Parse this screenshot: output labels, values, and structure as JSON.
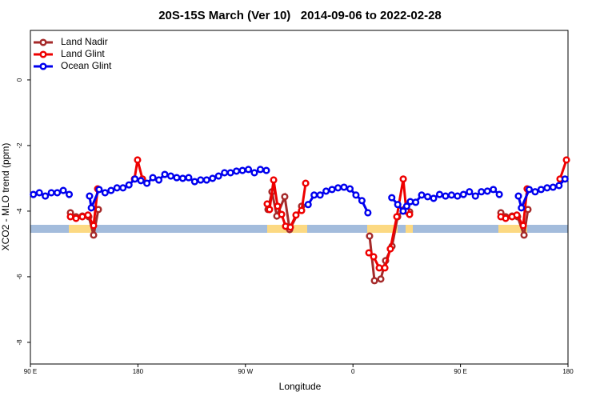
{
  "chart_data": {
    "type": "line",
    "title": "20S-15S March (Ver 10)   2014-09-06 to 2022-02-28",
    "xlabel": "Longitude",
    "ylabel": "XCO2 - MLO trend (ppm)",
    "xlim": [
      90,
      540
    ],
    "ylim": [
      -8.66,
      1.51
    ],
    "xticks": [
      {
        "value": 90,
        "label": "90 E"
      },
      180,
      {
        "value": 270,
        "label": "90 W"
      },
      {
        "value": 360,
        "label": "0"
      },
      {
        "value": 450,
        "label": "90 E"
      },
      {
        "value": 540,
        "label": "180"
      }
    ],
    "yticks": [
      0,
      -2,
      -4,
      -6,
      -8
    ],
    "legend": "top-left",
    "series": [
      {
        "name": "Land Nadir",
        "color": "#a52a2a",
        "x": [
          123.5,
          128.2,
          133.5,
          138.9,
          142.9,
          146.9,
          200,
          288.9,
          292.2,
          296.3,
          302.9,
          307.0,
          317.0,
          350,
          373.9,
          378.0,
          383.3,
          387.3,
          392.7,
          397.4,
          402.7,
          407.4,
          450,
          483.8,
          487.8,
          493.2,
          497.8,
          503.2,
          506.5
        ],
        "values": [
          -4.05,
          -4.17,
          -4.15,
          -4.17,
          -4.73,
          -3.95,
          null,
          -3.95,
          -3.41,
          -4.15,
          -3.56,
          -4.56,
          -3.85,
          null,
          -4.76,
          -6.12,
          -6.07,
          -5.51,
          -5.07,
          -4.17,
          -3.95,
          -4.02,
          null,
          -4.05,
          -4.17,
          -4.15,
          -4.17,
          -4.73,
          -3.95
        ]
      },
      {
        "name": "Land Glint",
        "color": "#ee0000",
        "x": [
          123.5,
          128.2,
          133.5,
          138.2,
          142.9,
          146.3,
          160,
          177.1,
          179.7,
          183.8,
          250,
          288.2,
          290.2,
          293.6,
          296.9,
          300.3,
          303.6,
          307.6,
          312.3,
          317.0,
          320.4,
          350,
          373.3,
          377.3,
          382.0,
          386.7,
          391.3,
          396.7,
          402.1,
          404.7,
          407.4,
          450,
          483.8,
          487.8,
          493.2,
          497.2,
          502.5,
          505.8,
          520,
          533.3,
          538.7
        ],
        "values": [
          -4.17,
          -4.22,
          -4.17,
          -4.12,
          -4.44,
          -3.32,
          null,
          -3.02,
          -2.44,
          -3.02,
          null,
          -3.78,
          -3.95,
          -3.05,
          -3.85,
          -4.1,
          -4.46,
          -4.49,
          -4.12,
          -3.98,
          -3.15,
          null,
          -5.27,
          -5.39,
          -5.73,
          -5.73,
          -5.15,
          -4.17,
          -3.02,
          -4.0,
          -4.1,
          null,
          -4.17,
          -4.22,
          -4.17,
          -4.12,
          -4.44,
          -3.32,
          null,
          -3.02,
          -2.44
        ]
      },
      {
        "name": "Ocean Glint",
        "color": "#0000ee",
        "x": [
          92.5,
          97.5,
          102.5,
          107.5,
          112.5,
          117.5,
          122.5,
          127.5,
          139.5,
          141,
          147.5,
          152.5,
          157.5,
          162.5,
          167.5,
          172.5,
          177.5,
          182.5,
          187.5,
          192.5,
          197.5,
          202.5,
          207.5,
          212.5,
          217.5,
          222.5,
          227.5,
          232.5,
          237.5,
          242.5,
          247.5,
          252.5,
          257.5,
          262.5,
          267.5,
          272.5,
          277.5,
          282.5,
          287.5,
          292.5,
          322.5,
          327.5,
          332.5,
          337.5,
          342.5,
          347.5,
          352.5,
          357.5,
          362.5,
          367.5,
          372.5,
          377.5,
          392.5,
          397.5,
          402,
          405,
          408,
          412.5,
          417.5,
          422.5,
          427.5,
          432.5,
          437.5,
          442.5,
          447.5,
          452.5,
          457.5,
          462.5,
          467.5,
          472.5,
          477.5,
          482.5,
          487.5,
          498.5,
          501,
          507.5,
          512.5,
          517.5,
          522.5,
          527.5,
          532.5,
          537.5
        ],
        "values": [
          -3.49,
          -3.44,
          -3.54,
          -3.44,
          -3.44,
          -3.37,
          -3.49,
          null,
          -3.54,
          -3.9,
          -3.34,
          -3.44,
          -3.37,
          -3.29,
          -3.29,
          -3.2,
          -3.02,
          -3.07,
          -3.15,
          -2.98,
          -3.05,
          -2.88,
          -2.93,
          -2.98,
          -3.0,
          -2.98,
          -3.1,
          -3.05,
          -3.05,
          -3.0,
          -2.93,
          -2.83,
          -2.83,
          -2.78,
          -2.76,
          -2.73,
          -2.83,
          -2.73,
          -2.76,
          null,
          -3.8,
          -3.51,
          -3.51,
          -3.39,
          -3.34,
          -3.29,
          -3.27,
          -3.32,
          -3.51,
          -3.68,
          -4.05,
          null,
          -3.59,
          -3.8,
          -4.0,
          -3.85,
          -3.71,
          -3.73,
          -3.51,
          -3.56,
          -3.61,
          -3.49,
          -3.54,
          -3.51,
          -3.54,
          -3.49,
          -3.41,
          -3.54,
          -3.41,
          -3.39,
          -3.34,
          -3.49,
          null,
          -3.54,
          -3.9,
          -3.34,
          -3.41,
          -3.34,
          -3.29,
          -3.27,
          -3.22,
          -3.02
        ]
      }
    ]
  }
}
